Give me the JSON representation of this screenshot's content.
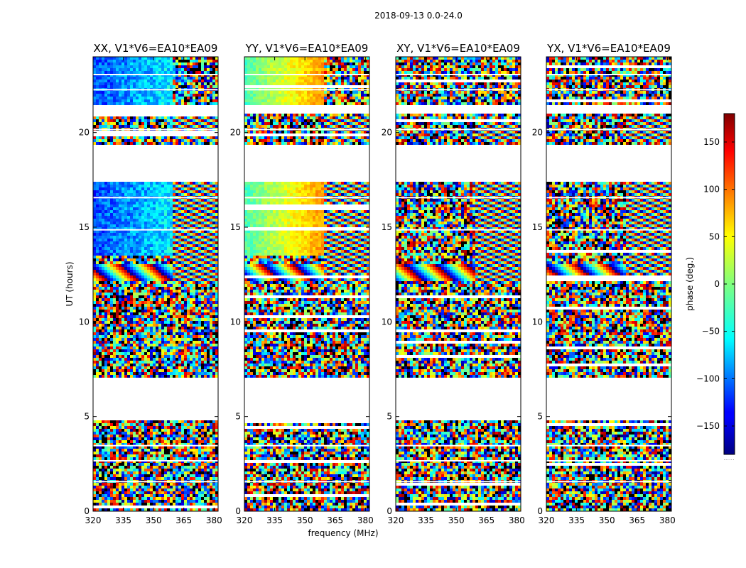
{
  "figure": {
    "suptitle": "2018-09-13 0.0-24.0"
  },
  "chart_data": {
    "type": "heatmap",
    "title": "2018-09-13 0.0-24.0",
    "xlabel": "frequency (MHz)",
    "ylabel": "UT (hours)",
    "xlim": [
      320,
      382
    ],
    "ylim": [
      0,
      24
    ],
    "x_ticks": [
      320,
      335,
      350,
      365,
      380
    ],
    "y_ticks": [
      0,
      5,
      10,
      15,
      20
    ],
    "colormap": "jet",
    "colorbar": {
      "label": "phase (deg.)",
      "range": [
        -180,
        180
      ],
      "ticks": [
        150,
        100,
        50,
        0,
        -50,
        -100,
        -150
      ],
      "tick_labels": [
        "150",
        "100",
        "50",
        "0",
        "−50",
        "−100",
        "−150"
      ],
      "footer": "......"
    },
    "empty_gaps_ut_hours": [
      [
        4.9,
        7.1
      ],
      [
        17.5,
        19.5
      ],
      [
        21.0,
        21.5
      ]
    ],
    "panels": [
      {
        "name": "XX, V1*V6=EA10*EA09",
        "baseline": "blue",
        "dominant_color": "#1a3cff"
      },
      {
        "name": "YY, V1*V6=EA10*EA09",
        "baseline": "green-yellow",
        "dominant_color": "#9ff04a"
      },
      {
        "name": "XY, V1*V6=EA10*EA09",
        "baseline": "noise",
        "dominant_color": "#6a7f8f"
      },
      {
        "name": "YX, V1*V6=EA10*EA09",
        "baseline": "noise",
        "dominant_color": "#6a7f8f"
      }
    ]
  }
}
